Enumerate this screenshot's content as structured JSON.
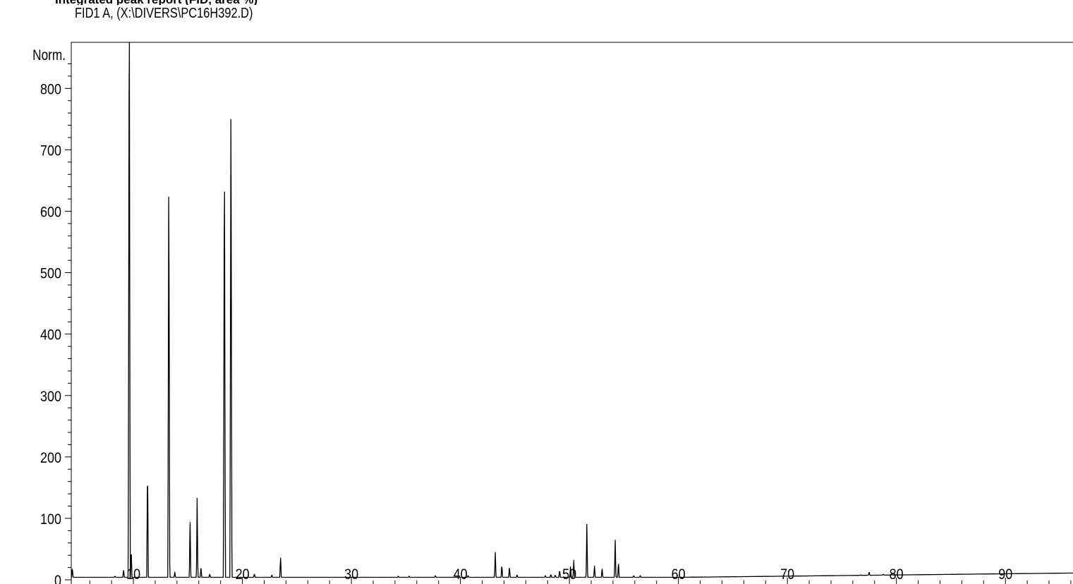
{
  "chart_data": {
    "type": "line",
    "title": "FID1 A,  (X:\\DIVERS\\PC16H392.D)",
    "ylabel": "Norm.",
    "xlabel": "",
    "xlim": [
      4.3,
      96.2
    ],
    "ylim": [
      -8,
      875
    ],
    "x_ticks": [
      10,
      20,
      30,
      40,
      50,
      60,
      70,
      80,
      90
    ],
    "x_tick_labels": [
      "10",
      "20",
      "30",
      "40",
      "50",
      "60",
      "70",
      "80",
      "90"
    ],
    "y_ticks": [
      0,
      100,
      200,
      300,
      400,
      500,
      600,
      700,
      800
    ],
    "y_tick_labels": [
      "0",
      "100",
      "200",
      "300",
      "400",
      "500",
      "600",
      "700",
      "800"
    ],
    "baseline": 4,
    "baseline_end": 11,
    "peaks": [
      {
        "x": 4.4,
        "y": 19
      },
      {
        "x": 8.3,
        "y": 6
      },
      {
        "x": 9.1,
        "y": 17
      },
      {
        "x": 9.62,
        "y": 1000
      },
      {
        "x": 9.8,
        "y": 50
      },
      {
        "x": 11.3,
        "y": 193
      },
      {
        "x": 13.25,
        "y": 660
      },
      {
        "x": 13.8,
        "y": 13
      },
      {
        "x": 15.2,
        "y": 101
      },
      {
        "x": 15.85,
        "y": 135
      },
      {
        "x": 16.2,
        "y": 22
      },
      {
        "x": 17.0,
        "y": 10
      },
      {
        "x": 18.35,
        "y": 716
      },
      {
        "x": 18.95,
        "y": 815
      },
      {
        "x": 21.1,
        "y": 10
      },
      {
        "x": 22.7,
        "y": 8
      },
      {
        "x": 23.5,
        "y": 39
      },
      {
        "x": 34.3,
        "y": 6
      },
      {
        "x": 35.3,
        "y": 6
      },
      {
        "x": 37.7,
        "y": 7
      },
      {
        "x": 40.7,
        "y": 7
      },
      {
        "x": 43.2,
        "y": 47
      },
      {
        "x": 43.8,
        "y": 25
      },
      {
        "x": 44.5,
        "y": 21
      },
      {
        "x": 45.2,
        "y": 8
      },
      {
        "x": 47.8,
        "y": 7
      },
      {
        "x": 48.3,
        "y": 9
      },
      {
        "x": 48.7,
        "y": 8
      },
      {
        "x": 49.1,
        "y": 16
      },
      {
        "x": 50.1,
        "y": 22
      },
      {
        "x": 50.4,
        "y": 33
      },
      {
        "x": 51.6,
        "y": 93
      },
      {
        "x": 52.3,
        "y": 23
      },
      {
        "x": 53.0,
        "y": 19
      },
      {
        "x": 54.2,
        "y": 66
      },
      {
        "x": 54.5,
        "y": 28
      },
      {
        "x": 55.9,
        "y": 7
      },
      {
        "x": 56.5,
        "y": 7
      },
      {
        "x": 70.5,
        "y": 7
      },
      {
        "x": 74.4,
        "y": 6
      },
      {
        "x": 76.7,
        "y": 8
      },
      {
        "x": 77.5,
        "y": 13
      },
      {
        "x": 78.8,
        "y": 9
      },
      {
        "x": 79.6,
        "y": 9
      }
    ]
  }
}
